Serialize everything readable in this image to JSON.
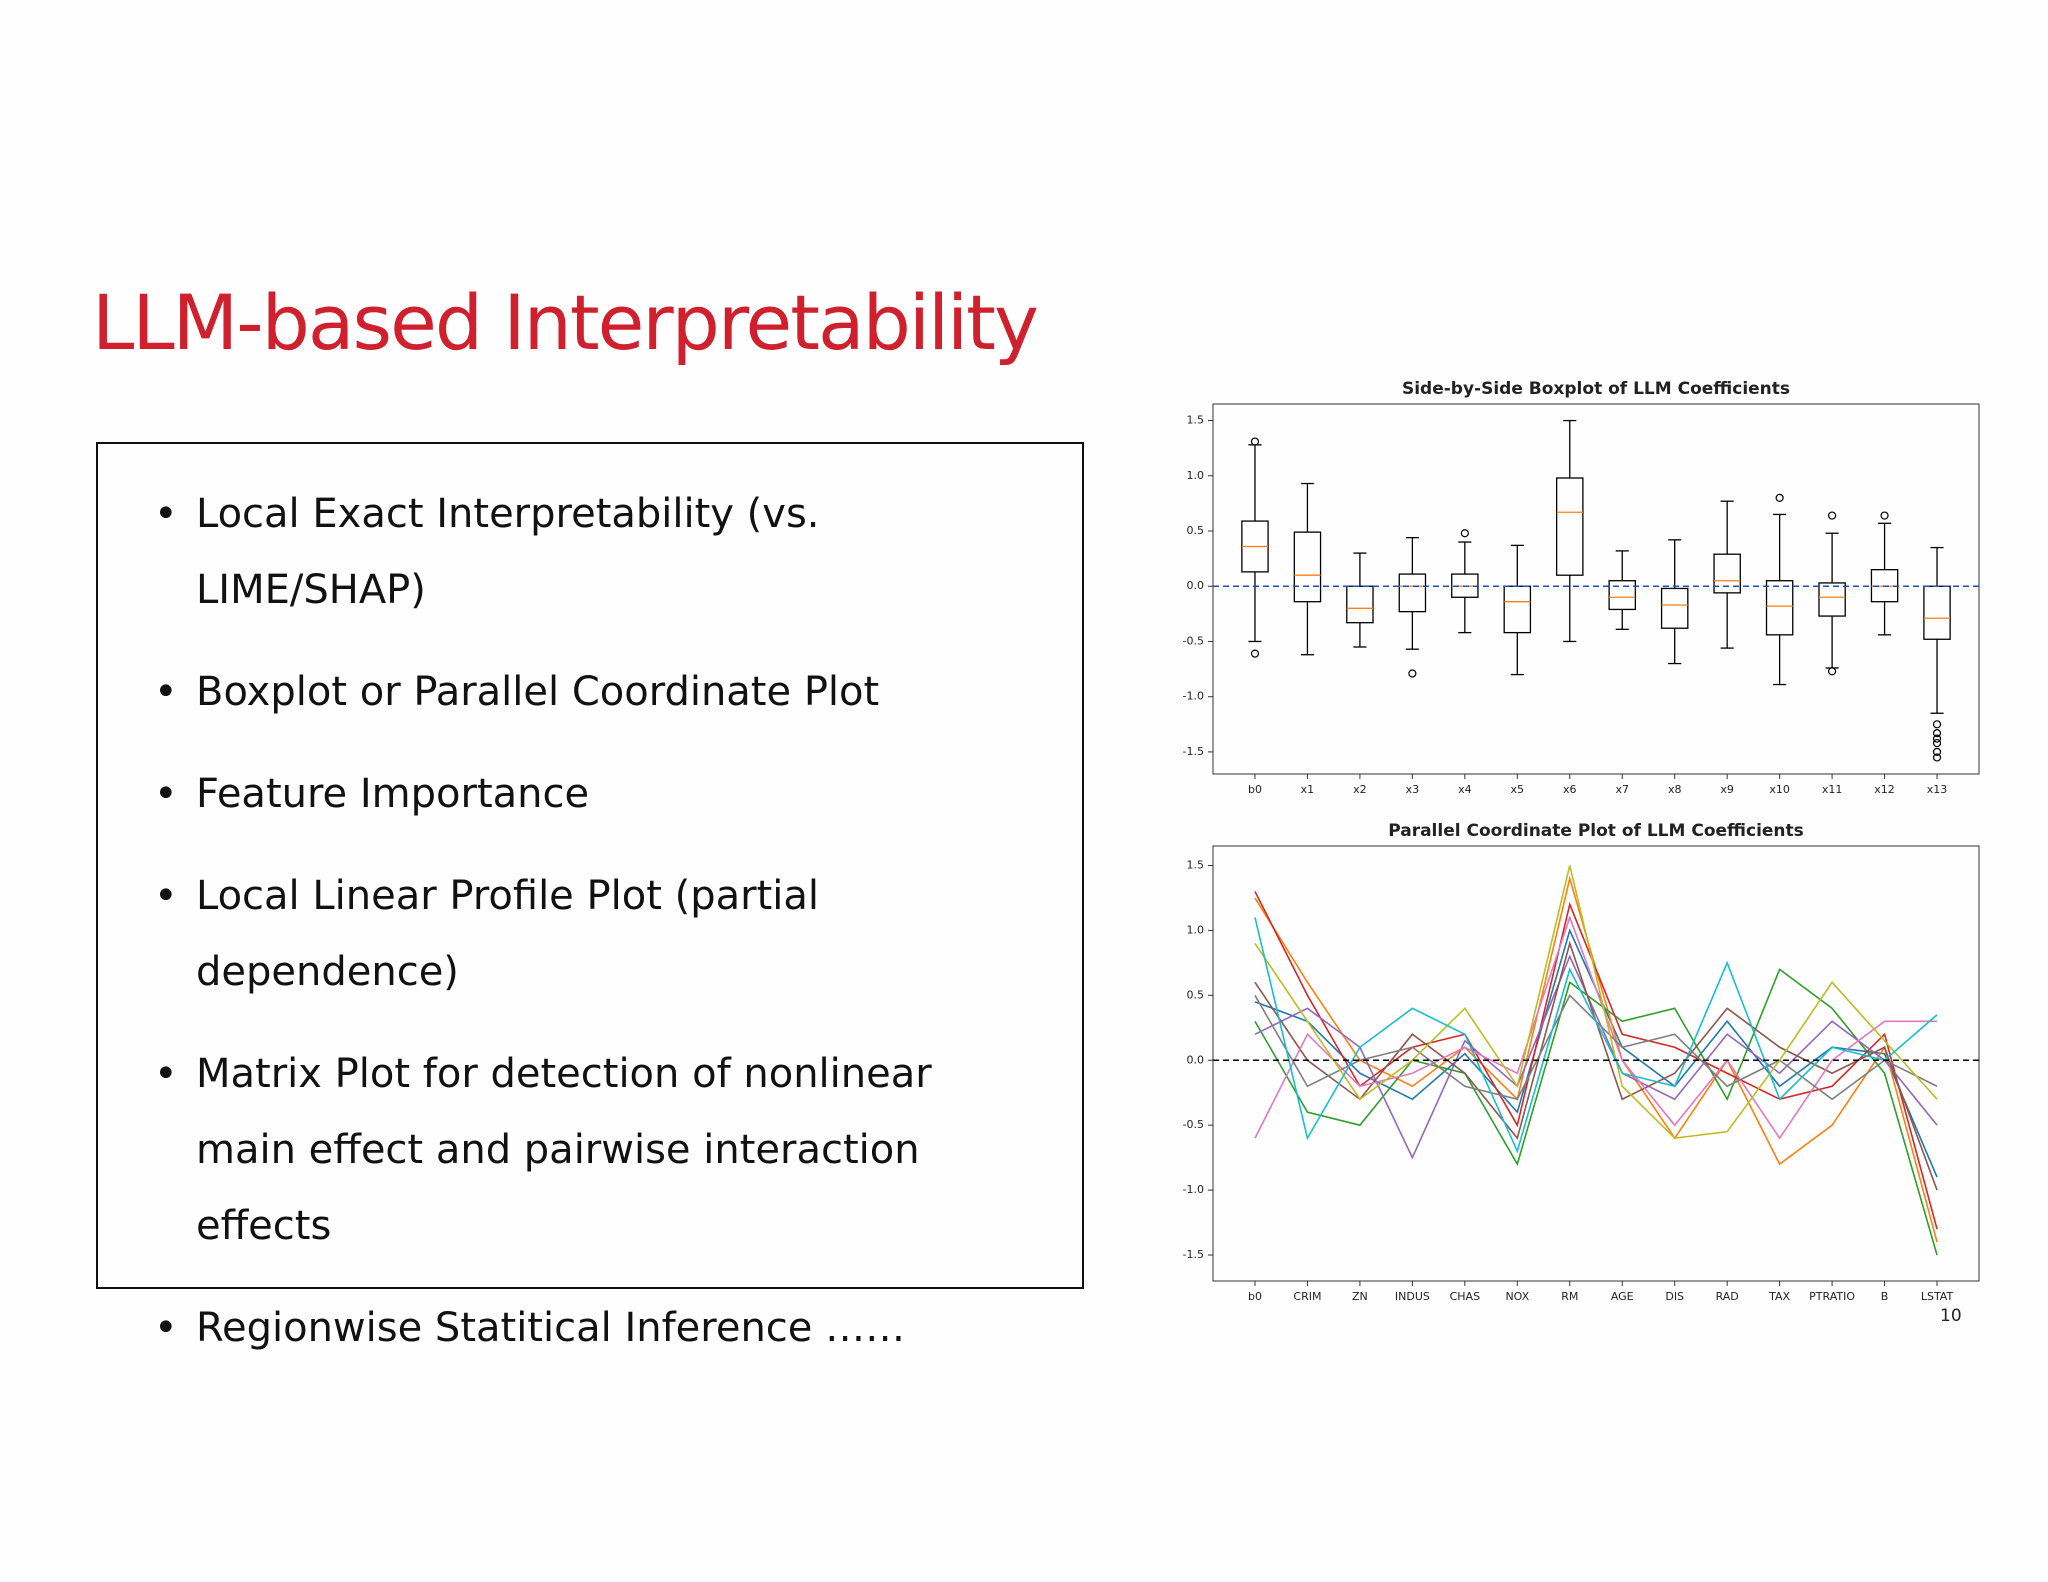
{
  "slide": {
    "title": "LLM-based Interpretability",
    "bullets": [
      "Local Exact Interpretability (vs. LIME/SHAP)",
      "Boxplot or Parallel Coordinate Plot",
      "Feature Importance",
      "Local Linear Profile Plot (partial dependence)",
      "Matrix Plot for detection of nonlinear main effect and pairwise interaction effects",
      "Regionwise Statitical Inference ……"
    ],
    "page_number": "10"
  },
  "chart_data": [
    {
      "type": "boxplot",
      "title": "Side-by-Side Boxplot of LLM Coefficients",
      "categories": [
        "b0",
        "x1",
        "x2",
        "x3",
        "x4",
        "x5",
        "x6",
        "x7",
        "x8",
        "x9",
        "x10",
        "x11",
        "x12",
        "x13"
      ],
      "boxes": [
        {
          "whislo": -0.5,
          "q1": 0.13,
          "med": 0.36,
          "q3": 0.59,
          "whishi": 1.28,
          "fliers": [
            1.31,
            -0.61
          ]
        },
        {
          "whislo": -0.62,
          "q1": -0.14,
          "med": 0.1,
          "q3": 0.49,
          "whishi": 0.93,
          "fliers": []
        },
        {
          "whislo": -0.55,
          "q1": -0.33,
          "med": -0.2,
          "q3": 0.0,
          "whishi": 0.3,
          "fliers": []
        },
        {
          "whislo": -0.57,
          "q1": -0.23,
          "med": 0.0,
          "q3": 0.11,
          "whishi": 0.44,
          "fliers": [
            -0.79
          ]
        },
        {
          "whislo": -0.42,
          "q1": -0.1,
          "med": 0.0,
          "q3": 0.11,
          "whishi": 0.4,
          "fliers": [
            0.48
          ]
        },
        {
          "whislo": -0.8,
          "q1": -0.42,
          "med": -0.14,
          "q3": 0.0,
          "whishi": 0.37,
          "fliers": []
        },
        {
          "whislo": -0.5,
          "q1": 0.1,
          "med": 0.67,
          "q3": 0.98,
          "whishi": 1.5,
          "fliers": []
        },
        {
          "whislo": -0.39,
          "q1": -0.21,
          "med": -0.1,
          "q3": 0.05,
          "whishi": 0.32,
          "fliers": []
        },
        {
          "whislo": -0.7,
          "q1": -0.38,
          "med": -0.17,
          "q3": -0.02,
          "whishi": 0.42,
          "fliers": []
        },
        {
          "whislo": -0.56,
          "q1": -0.06,
          "med": 0.05,
          "q3": 0.29,
          "whishi": 0.77,
          "fliers": []
        },
        {
          "whislo": -0.89,
          "q1": -0.44,
          "med": -0.18,
          "q3": 0.05,
          "whishi": 0.65,
          "fliers": [
            0.8
          ]
        },
        {
          "whislo": -0.74,
          "q1": -0.27,
          "med": -0.1,
          "q3": 0.03,
          "whishi": 0.48,
          "fliers": [
            0.64,
            -0.77
          ]
        },
        {
          "whislo": -0.44,
          "q1": -0.14,
          "med": 0.0,
          "q3": 0.15,
          "whishi": 0.57,
          "fliers": [
            0.64
          ]
        },
        {
          "whislo": -1.15,
          "q1": -0.48,
          "med": -0.29,
          "q3": 0.0,
          "whishi": 0.35,
          "fliers": [
            -1.25,
            -1.33,
            -1.38,
            -1.42,
            -1.5,
            -1.55
          ]
        }
      ],
      "box_color": "#000000",
      "median_color": "#ff7f0e",
      "hline": 0,
      "hline_color": "#1f4fbf",
      "ylim": [
        -1.7,
        1.65
      ],
      "yticks": [
        -1.5,
        {
          "value": -1,
          "label": "-1.0"
        },
        -0.5,
        {
          "value": 0,
          "label": "0.0"
        },
        0.5,
        {
          "value": 1,
          "label": "1.0"
        },
        1.5
      ]
    },
    {
      "type": "line",
      "title": "Parallel Coordinate Plot of LLM Coefficients",
      "categories": [
        "b0",
        "CRIM",
        "ZN",
        "INDUS",
        "CHAS",
        "NOX",
        "RM",
        "AGE",
        "DIS",
        "RAD",
        "TAX",
        "PTRATIO",
        "B",
        "LSTAT"
      ],
      "series": [
        {
          "color": "#1f77b4",
          "values": [
            0.45,
            0.3,
            -0.1,
            -0.3,
            0.05,
            -0.4,
            1.0,
            0.1,
            -0.2,
            0.3,
            -0.2,
            0.1,
            0.05,
            -0.9
          ]
        },
        {
          "color": "#ff7f0e",
          "values": [
            1.25,
            0.6,
            0.0,
            -0.2,
            0.1,
            -0.3,
            1.4,
            0.0,
            -0.6,
            0.0,
            -0.8,
            -0.5,
            0.1,
            -1.4
          ]
        },
        {
          "color": "#2ca02c",
          "values": [
            0.3,
            -0.4,
            -0.5,
            0.0,
            -0.1,
            -0.8,
            0.6,
            0.3,
            0.4,
            -0.3,
            0.7,
            0.4,
            -0.1,
            -1.5
          ]
        },
        {
          "color": "#d62728",
          "values": [
            1.3,
            0.5,
            -0.2,
            0.1,
            0.2,
            -0.5,
            1.2,
            0.2,
            0.1,
            -0.1,
            -0.3,
            -0.2,
            0.2,
            -1.3
          ]
        },
        {
          "color": "#9467bd",
          "values": [
            0.2,
            0.4,
            0.1,
            -0.75,
            0.15,
            -0.2,
            0.8,
            -0.1,
            -0.3,
            0.2,
            -0.1,
            0.3,
            0.0,
            -0.5
          ]
        },
        {
          "color": "#8c564b",
          "values": [
            0.6,
            0.0,
            -0.3,
            0.2,
            -0.1,
            -0.6,
            0.9,
            -0.3,
            -0.1,
            0.4,
            0.1,
            -0.1,
            0.1,
            -1.0
          ]
        },
        {
          "color": "#e377c2",
          "values": [
            -0.6,
            0.2,
            -0.2,
            -0.1,
            0.1,
            -0.1,
            1.1,
            0.0,
            -0.5,
            0.0,
            -0.6,
            0.0,
            0.3,
            0.3
          ]
        },
        {
          "color": "#7f7f7f",
          "values": [
            0.5,
            -0.2,
            0.0,
            0.1,
            -0.2,
            -0.3,
            0.5,
            0.1,
            0.2,
            -0.2,
            0.0,
            -0.3,
            0.0,
            -0.2
          ]
        },
        {
          "color": "#bcbd22",
          "values": [
            0.9,
            0.3,
            -0.3,
            0.0,
            0.4,
            -0.2,
            1.5,
            -0.2,
            -0.6,
            -0.55,
            0.0,
            0.6,
            0.15,
            -0.3
          ]
        },
        {
          "color": "#17becf",
          "values": [
            1.1,
            -0.6,
            0.1,
            0.4,
            0.2,
            -0.7,
            0.7,
            -0.1,
            -0.2,
            0.75,
            -0.3,
            0.1,
            0.0,
            0.35
          ]
        }
      ],
      "hline": 0,
      "hline_color": "#000000",
      "ylim": [
        -1.7,
        1.65
      ],
      "yticks": [
        -1.5,
        {
          "value": -1,
          "label": "-1.0"
        },
        -0.5,
        {
          "value": 0,
          "label": "0.0"
        },
        0.5,
        {
          "value": 1,
          "label": "1.0"
        },
        1.5
      ]
    }
  ]
}
